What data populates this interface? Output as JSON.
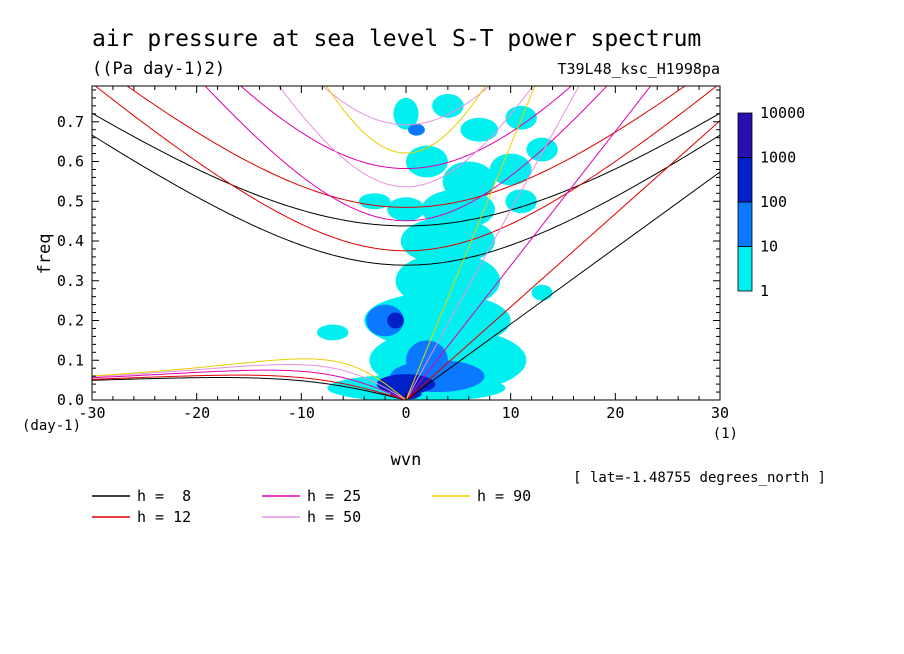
{
  "title": "air pressure at sea level S-T power spectrum",
  "units": "((Pa day-1)2)",
  "run_label": "T39L48_ksc_H1998pa",
  "lat_note": "[ lat=-1.48755 degrees_north ]",
  "chart_data": {
    "type": "contour",
    "title": "air pressure at sea level S-T power spectrum",
    "xlabel": "wvn",
    "ylabel": "freq",
    "x_unit": "(1)",
    "y_unit": "(day-1)",
    "xlim": [
      -30,
      30
    ],
    "ylim": [
      0,
      0.79
    ],
    "x_ticks": [
      -30,
      -20,
      -10,
      0,
      10,
      20,
      30
    ],
    "x_tick_labels": [
      "-30",
      "-20",
      "-10",
      "0",
      "10",
      "20",
      "30"
    ],
    "y_ticks": [
      0.0,
      0.1,
      0.2,
      0.3,
      0.4,
      0.5,
      0.6,
      0.7
    ],
    "y_tick_labels": [
      "0.0",
      "0.1",
      "0.2",
      "0.3",
      "0.4",
      "0.5",
      "0.6",
      "0.7"
    ],
    "colorbar": {
      "levels": [
        "1",
        "10",
        "100",
        "1000",
        "10000"
      ],
      "colors": [
        "#00f0f0",
        "#0a78ff",
        "#0020c8",
        "#2810b0"
      ]
    },
    "power_regions": [
      {
        "level": 1,
        "x": 0,
        "y": 0.72,
        "rx": 1.2,
        "ry": 0.04
      },
      {
        "level": 1,
        "x": 4,
        "y": 0.74,
        "rx": 1.5,
        "ry": 0.03
      },
      {
        "level": 1,
        "x": 7,
        "y": 0.68,
        "rx": 1.8,
        "ry": 0.03
      },
      {
        "level": 1,
        "x": 11,
        "y": 0.71,
        "rx": 1.5,
        "ry": 0.03
      },
      {
        "level": 1,
        "x": 2,
        "y": 0.6,
        "rx": 2.0,
        "ry": 0.04
      },
      {
        "level": 1,
        "x": 6,
        "y": 0.55,
        "rx": 2.5,
        "ry": 0.05
      },
      {
        "level": 1,
        "x": 10,
        "y": 0.58,
        "rx": 2.0,
        "ry": 0.04
      },
      {
        "level": 1,
        "x": 13,
        "y": 0.63,
        "rx": 1.5,
        "ry": 0.03
      },
      {
        "level": 1,
        "x": 5,
        "y": 0.48,
        "rx": 3.5,
        "ry": 0.05
      },
      {
        "level": 1,
        "x": 0,
        "y": 0.48,
        "rx": 1.8,
        "ry": 0.03
      },
      {
        "level": 1,
        "x": 11,
        "y": 0.5,
        "rx": 1.5,
        "ry": 0.03
      },
      {
        "level": 1,
        "x": 4,
        "y": 0.4,
        "rx": 4.5,
        "ry": 0.06
      },
      {
        "level": 1,
        "x": 4,
        "y": 0.3,
        "rx": 5.0,
        "ry": 0.07
      },
      {
        "level": 1,
        "x": 3,
        "y": 0.2,
        "rx": 7.0,
        "ry": 0.07
      },
      {
        "level": 1,
        "x": 4,
        "y": 0.1,
        "rx": 7.5,
        "ry": 0.08
      },
      {
        "level": 1,
        "x": 1,
        "y": 0.03,
        "rx": 8.5,
        "ry": 0.035
      },
      {
        "level": 1,
        "x": -7,
        "y": 0.17,
        "rx": 1.5,
        "ry": 0.02
      },
      {
        "level": 1,
        "x": -3,
        "y": 0.5,
        "rx": 1.5,
        "ry": 0.02
      },
      {
        "level": 1,
        "x": 13,
        "y": 0.27,
        "rx": 1.0,
        "ry": 0.02
      },
      {
        "level": 10,
        "x": 3,
        "y": 0.06,
        "rx": 4.5,
        "ry": 0.04
      },
      {
        "level": 10,
        "x": -2,
        "y": 0.2,
        "rx": 1.8,
        "ry": 0.04
      },
      {
        "level": 10,
        "x": 2,
        "y": 0.1,
        "rx": 2.0,
        "ry": 0.05
      },
      {
        "level": 10,
        "x": 1,
        "y": 0.68,
        "rx": 0.8,
        "ry": 0.015
      },
      {
        "level": 100,
        "x": 0,
        "y": 0.04,
        "rx": 2.8,
        "ry": 0.025
      },
      {
        "level": 100,
        "x": -1,
        "y": 0.2,
        "rx": 0.8,
        "ry": 0.02
      },
      {
        "level": 100,
        "x": 0,
        "y": 0.015,
        "rx": 1.5,
        "ry": 0.012
      },
      {
        "level": 1000,
        "x": 0.3,
        "y": 0.008,
        "rx": 0.8,
        "ry": 0.006
      }
    ],
    "dispersion_curves": [
      {
        "h": 8,
        "color": "#000000",
        "equivalent_depth_m": 8
      },
      {
        "h": 12,
        "color": "#e00000",
        "equivalent_depth_m": 12
      },
      {
        "h": 25,
        "color": "#e000b0",
        "equivalent_depth_m": 25
      },
      {
        "h": 50,
        "color": "#e890e0",
        "equivalent_depth_m": 50
      },
      {
        "h": 90,
        "color": "#e8d000",
        "equivalent_depth_m": 90
      }
    ]
  },
  "legend": [
    {
      "label": "h =  8",
      "color": "#000000"
    },
    {
      "label": "h = 12",
      "color": "#e00000"
    },
    {
      "label": "h = 25",
      "color": "#e000b0"
    },
    {
      "label": "h = 50",
      "color": "#e890e0"
    },
    {
      "label": "h = 90",
      "color": "#e8d000"
    }
  ]
}
